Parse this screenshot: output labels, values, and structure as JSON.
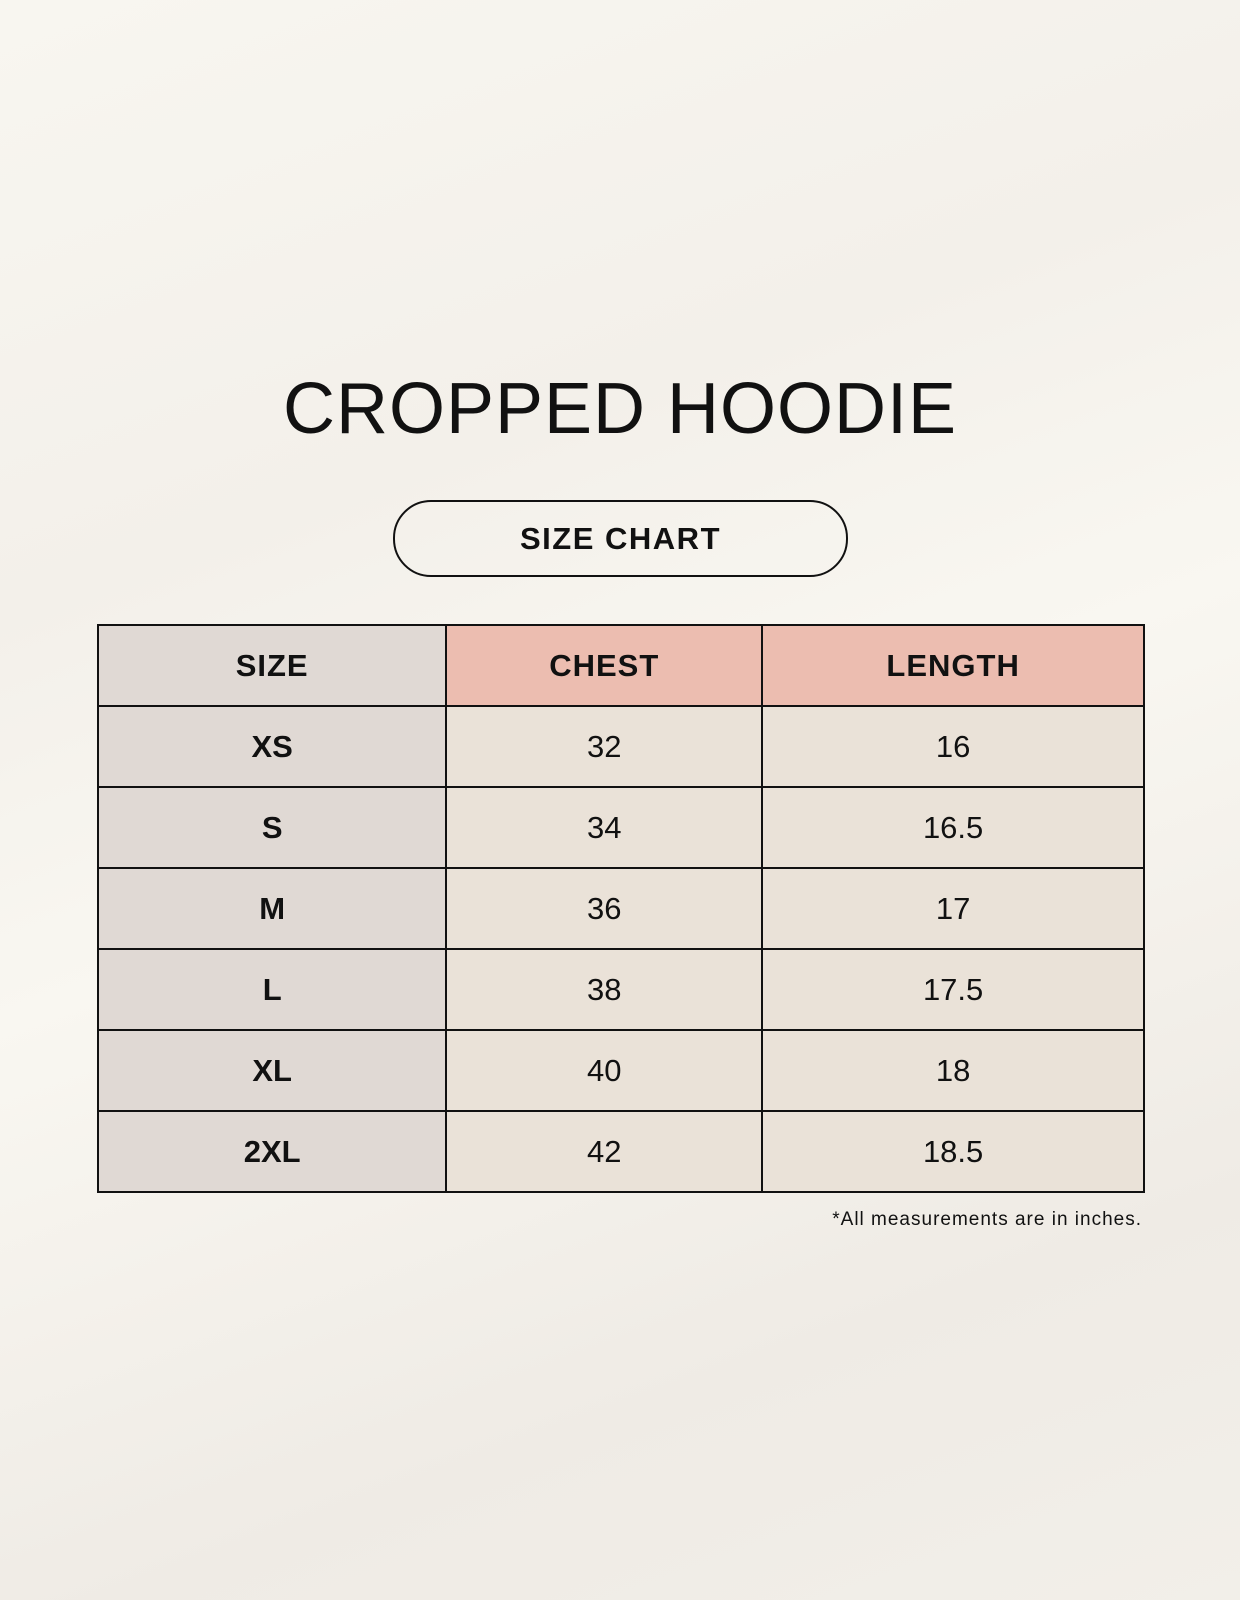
{
  "title": "CROPPED HOODIE",
  "subtitle": "SIZE CHART",
  "table": {
    "headers": [
      "SIZE",
      "CHEST",
      "LENGTH"
    ],
    "rows": [
      [
        "XS",
        "32",
        "16"
      ],
      [
        "S",
        "34",
        "16.5"
      ],
      [
        "M",
        "36",
        "17"
      ],
      [
        "L",
        "38",
        "17.5"
      ],
      [
        "XL",
        "40",
        "18"
      ],
      [
        "2XL",
        "42",
        "18.5"
      ]
    ]
  },
  "footnote": "*All measurements are in inches.",
  "colors": {
    "size_column": "#e0d9d4",
    "header_accent": "#ecbdb0",
    "value_cells": "#eae2d8"
  }
}
